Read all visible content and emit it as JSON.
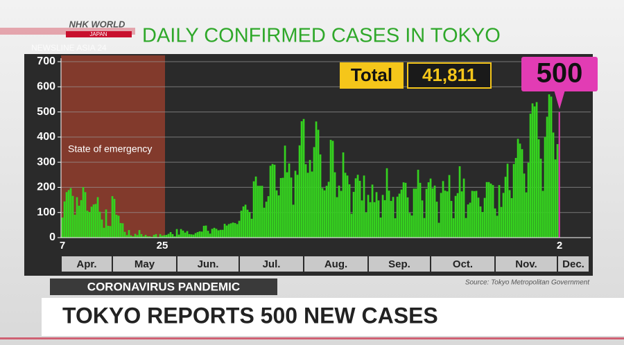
{
  "header": {
    "logo": "NHK WORLD",
    "logo_sub": "JAPAN",
    "program": "NEWSLINE ASIA 24"
  },
  "chart_data": {
    "type": "bar",
    "title": "DAILY CONFIRMED CASES IN TOKYO",
    "annotation": "State of emergency",
    "total_label": "Total",
    "total": "41,811",
    "source": "Source: Tokyo Metropolitan Government",
    "months": [
      "Apr.",
      "May",
      "Jun.",
      "Jul.",
      "Aug.",
      "Sep.",
      "Oct.",
      "Nov.",
      "Dec."
    ],
    "categories": [
      "7",
      null,
      null,
      null,
      null,
      null,
      null,
      null,
      null,
      null,
      null,
      null,
      null,
      null,
      null,
      null,
      null,
      null,
      null,
      null,
      null,
      null,
      null,
      null,
      null,
      null,
      null,
      null,
      null,
      null,
      null,
      null,
      null,
      null,
      null,
      null,
      null,
      null,
      null,
      null,
      null,
      null,
      null,
      null,
      null,
      null,
      null,
      null,
      "25",
      null,
      null,
      null,
      null,
      null,
      null,
      null,
      null,
      null,
      null,
      null,
      null,
      null,
      null,
      null,
      null,
      null,
      null,
      null,
      null,
      null,
      null,
      null,
      null,
      null,
      null,
      null,
      null,
      null,
      null,
      null,
      null,
      null,
      null,
      null,
      null,
      null,
      null,
      null,
      null,
      null,
      null,
      null,
      null,
      null,
      null,
      null,
      null,
      null,
      null,
      null,
      null,
      null,
      null,
      null,
      null,
      null,
      null,
      null,
      null,
      null,
      null,
      null,
      null,
      null,
      null,
      null,
      null,
      null,
      null,
      null,
      null,
      null,
      null,
      null,
      null,
      null,
      null,
      null,
      null,
      null,
      null,
      null,
      null,
      null,
      null,
      null,
      null,
      null,
      null,
      null,
      null,
      null,
      null,
      null,
      null,
      null,
      null,
      null,
      null,
      null,
      null,
      null,
      null,
      null,
      null,
      null,
      null,
      null,
      null,
      null,
      null,
      null,
      null,
      null,
      null,
      null,
      null,
      null,
      null,
      null,
      null,
      null,
      null,
      null,
      null,
      null,
      null,
      null,
      null,
      null,
      null,
      null,
      null,
      null,
      null,
      null,
      null,
      null,
      null,
      null,
      null,
      null,
      null,
      null,
      null,
      null,
      null,
      null,
      null,
      null,
      null,
      null,
      null,
      null,
      null,
      null,
      null,
      null,
      null,
      null,
      null,
      null,
      null,
      null,
      null,
      null,
      null,
      null,
      null,
      null,
      null,
      null,
      null,
      null,
      null,
      null,
      null,
      null,
      null,
      null,
      null,
      null,
      null,
      null,
      null,
      null,
      null,
      null,
      null,
      "2"
    ],
    "values": [
      80,
      144,
      181,
      189,
      197,
      166,
      91,
      161,
      127,
      149,
      201,
      181,
      107,
      102,
      123,
      132,
      134,
      161,
      103,
      72,
      39,
      112,
      47,
      46,
      165,
      154,
      91,
      87,
      58,
      57,
      23,
      10,
      30,
      9,
      5,
      15,
      10,
      30,
      14,
      5,
      11,
      5,
      5,
      3,
      11,
      14,
      2,
      14,
      8,
      10,
      11,
      15,
      22,
      14,
      5,
      34,
      12,
      34,
      28,
      20,
      26,
      14,
      13,
      12,
      18,
      22,
      25,
      24,
      47,
      48,
      27,
      16,
      35,
      39,
      35,
      29,
      31,
      31,
      55,
      48,
      54,
      57,
      60,
      58,
      54,
      67,
      107,
      124,
      131,
      111,
      102,
      75,
      224,
      243,
      206,
      206,
      206,
      119,
      143,
      165,
      286,
      293,
      290,
      188,
      168,
      237,
      238,
      366,
      260,
      295,
      239,
      131,
      266,
      250,
      367,
      463,
      472,
      292,
      258,
      309,
      263,
      360,
      462,
      429,
      331,
      197,
      188,
      206,
      222,
      389,
      385,
      260,
      161,
      207,
      186,
      339,
      258,
      247,
      212,
      95,
      182,
      236,
      250,
      226,
      148,
      247,
      100,
      170,
      141,
      211,
      141,
      181,
      148,
      80,
      170,
      149,
      276,
      187,
      146,
      162,
      77,
      163,
      175,
      191,
      220,
      218,
      160,
      98,
      88,
      195,
      195,
      270,
      218,
      148,
      78,
      194,
      220,
      235,
      196,
      207,
      143,
      59,
      178,
      225,
      187,
      184,
      249,
      146,
      77,
      166,
      177,
      284,
      184,
      235,
      78,
      132,
      139,
      186,
      185,
      186,
      159,
      124,
      102,
      158,
      221,
      221,
      215,
      209,
      116,
      87,
      209,
      122,
      178,
      242,
      294,
      189,
      157,
      293,
      317,
      393,
      374,
      352,
      255,
      180,
      298,
      493,
      534,
      522,
      539,
      391,
      314,
      186,
      401,
      481,
      570,
      561,
      418,
      311,
      372,
      500
    ],
    "color": "#35d21f",
    "highlight_color": "#e23cb4",
    "ylim": [
      0,
      700
    ],
    "yticks": [
      0,
      100,
      200,
      300,
      400,
      500,
      600,
      700
    ],
    "grid": true
  },
  "lower_third": {
    "tag": "CORONAVIRUS PANDEMIC",
    "headline": "TOKYO REPORTS 500 NEW CASES"
  }
}
